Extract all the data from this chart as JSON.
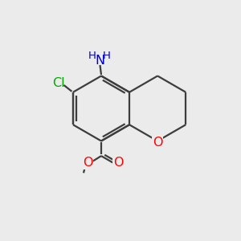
{
  "bg_color": "#ebebeb",
  "bond_color": "#3d3d3d",
  "N_color": "#0000cd",
  "O_color": "#ff0000",
  "Cl_color": "#00aa00",
  "line_width": 1.6,
  "font_size_label": 11.5,
  "font_size_H": 9.5,
  "fig_size": [
    3.0,
    3.0
  ],
  "dpi": 100,
  "xlim": [
    0,
    10
  ],
  "ylim": [
    0,
    10
  ]
}
